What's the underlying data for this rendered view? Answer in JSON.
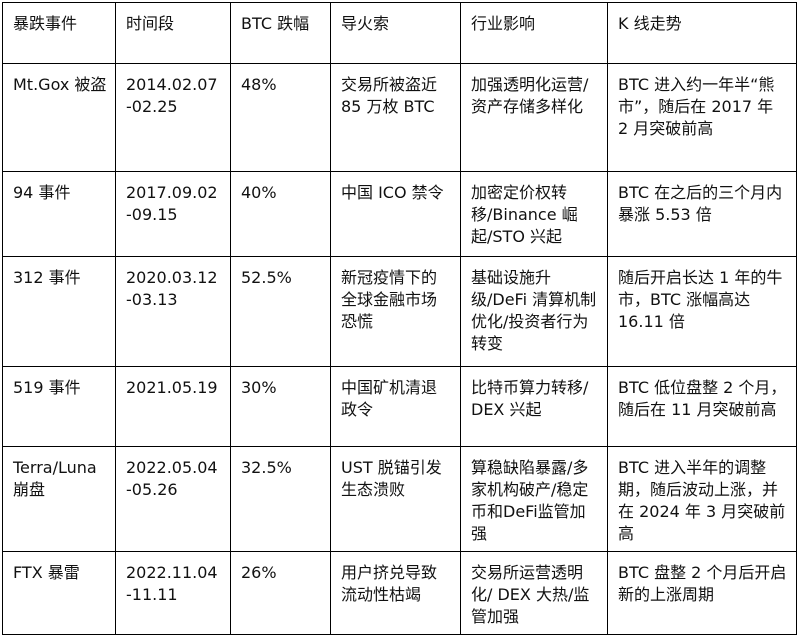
{
  "table": {
    "header": [
      "暴跌事件",
      "时间段",
      "BTC 跌幅",
      "导火索",
      "行业影响",
      "K 线走势"
    ],
    "rows": [
      [
        "Mt.Gox 被盗",
        "2014.02.07-02.25",
        "48%",
        "交易所被盗近 85 万枚 BTC",
        "加强透明化运营/资产存储多样化",
        "BTC 进入约一年半“熊市”，随后在 2017 年 2 月突破前高"
      ],
      [
        "94 事件",
        "2017.09.02-09.15",
        "40%",
        "中国 ICO 禁令",
        "加密定价权转移/Binance 崛起/STO 兴起",
        "BTC 在之后的三个月内暴涨 5.53 倍"
      ],
      [
        "312 事件",
        "2020.03.12-03.13",
        "52.5%",
        "新冠疫情下的全球金融市场恐慌",
        "基础设施升级/DeFi 清算机制优化/投资者行为转变",
        "随后开启长达 1 年的牛市，BTC 涨幅高达 16.11 倍"
      ],
      [
        "519 事件",
        "2021.05.19",
        "30%",
        "中国矿机清退政令",
        "比特币算力转移/ DEX 兴起",
        "BTC 低位盘整 2 个月，随后在 11 月突破前高"
      ],
      [
        "Terra/Luna 崩盘",
        "2022.05.04-05.26",
        "32.5%",
        "UST 脱锚引发生态溃败",
        "算稳缺陷暴露/多家机构破产/稳定币和DeFi监管加强",
        "BTC 进入半年的调整期，随后波动上涨，并在 2024 年 3 月突破前高"
      ],
      [
        "FTX 暴雷",
        "2022.11.04-11.11",
        "26%",
        "用户挤兑导致流动性枯竭",
        "交易所运营透明化/ DEX 大热/监管加强",
        "BTC 盘整 2 个月后开启新的上涨周期"
      ]
    ]
  }
}
